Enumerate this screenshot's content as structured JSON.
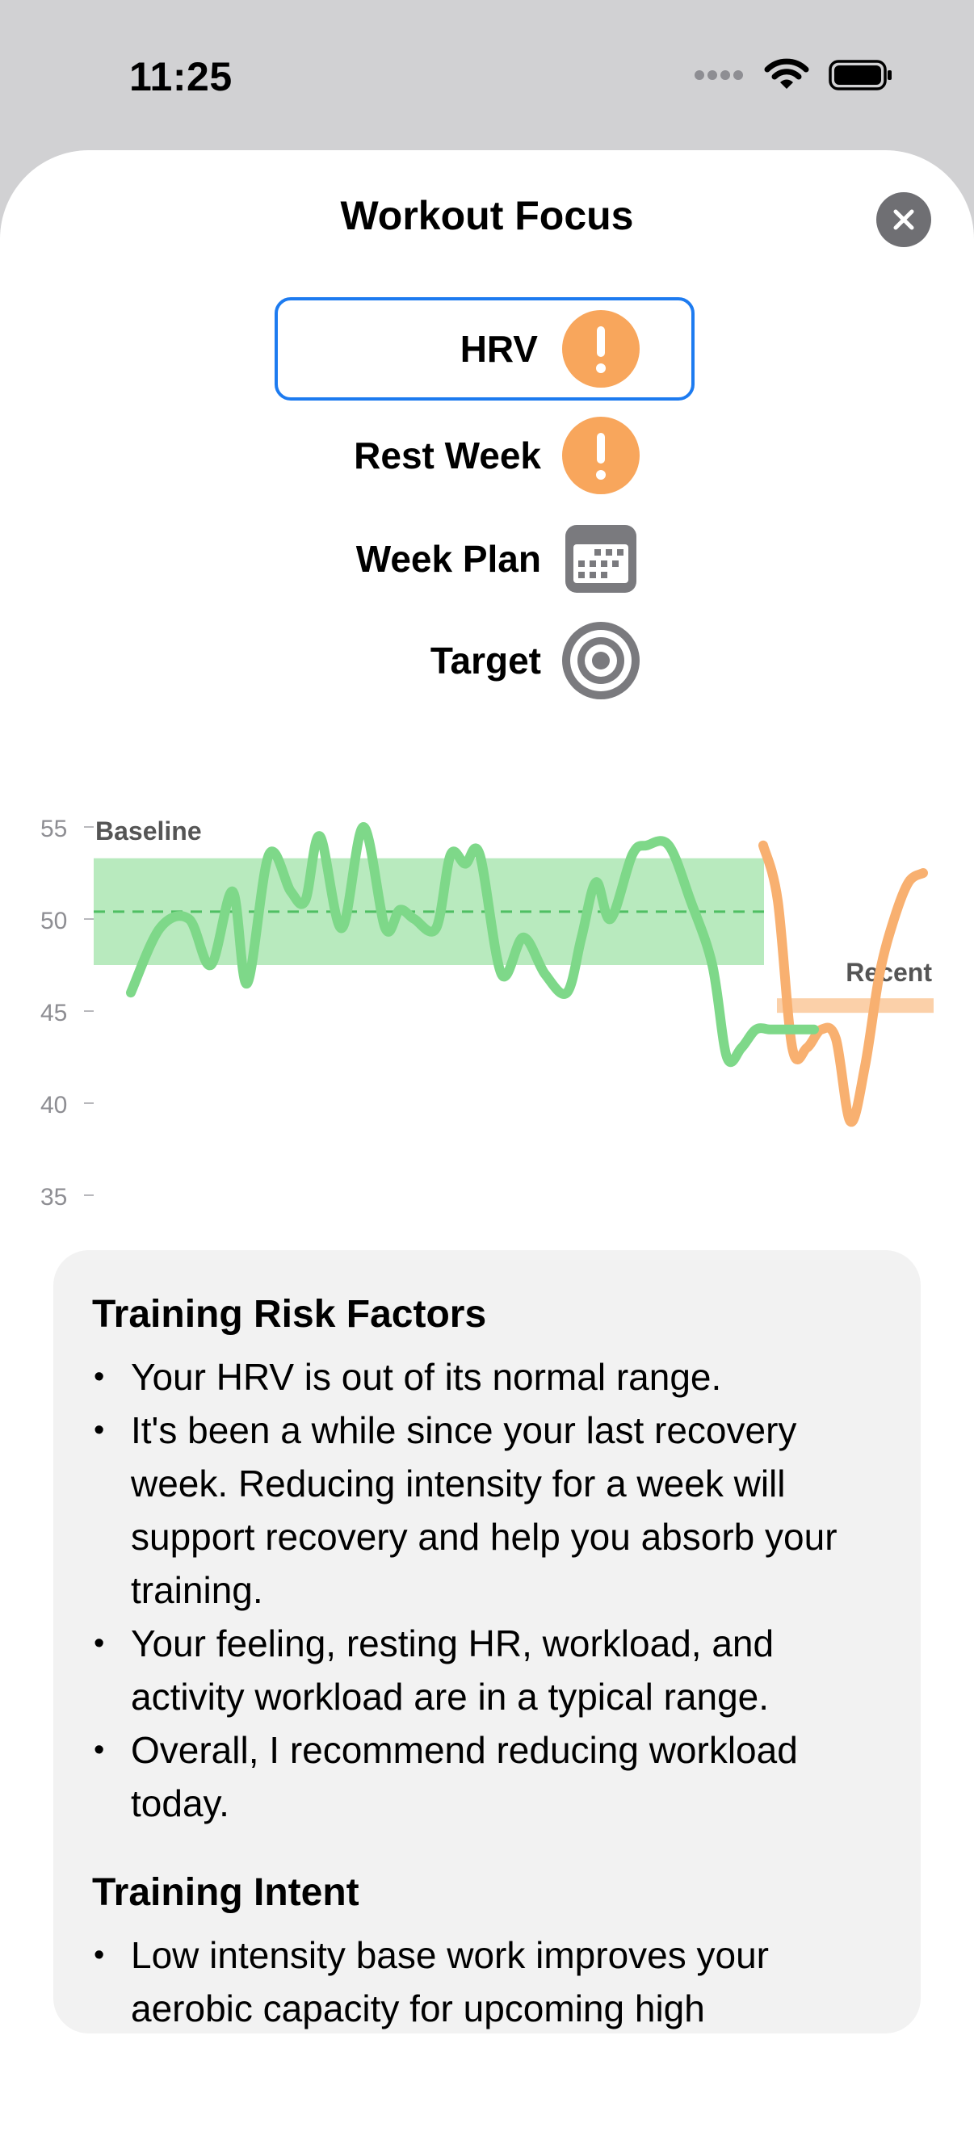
{
  "status_bar": {
    "time": "11:25"
  },
  "sheet": {
    "title": "Workout Focus"
  },
  "factors": [
    {
      "label": "HRV",
      "icon": "exclamation-icon",
      "selected": true,
      "accent": "#f8a65c"
    },
    {
      "label": "Rest Week",
      "icon": "exclamation-icon",
      "selected": false,
      "accent": "#f8a65c"
    },
    {
      "label": "Week Plan",
      "icon": "calendar-icon",
      "selected": false,
      "accent": "#7a7a7e"
    },
    {
      "label": "Target",
      "icon": "target-icon",
      "selected": false,
      "accent": "#7a7a7e"
    }
  ],
  "chart_data": {
    "type": "line",
    "title": "",
    "xlabel": "",
    "ylabel": "",
    "ylim": [
      35,
      55
    ],
    "yticks": [
      "55",
      "50",
      "45",
      "40",
      "35"
    ],
    "grid": false,
    "baseline": {
      "label": "Baseline",
      "value": 50.4,
      "band": [
        47.5,
        53.3
      ],
      "color": "#7ed889"
    },
    "recent": {
      "label": "Recent",
      "value": 45.3,
      "color": "#f8b070"
    },
    "series": [
      {
        "color": "#7ed889",
        "x": [
          0,
          4,
          8,
          11,
          14,
          16,
          19,
          22,
          24,
          26,
          29,
          32,
          35,
          37,
          39,
          42,
          44,
          46,
          48,
          51,
          54,
          57,
          60,
          62,
          64,
          66,
          69,
          71,
          74,
          77,
          80,
          82,
          84,
          86,
          88,
          90,
          92,
          94
        ],
        "values": [
          46,
          49.5,
          50,
          47.5,
          51.5,
          46.5,
          53.5,
          51.5,
          51,
          54.5,
          49.5,
          55,
          49.5,
          50.5,
          50,
          49.5,
          53.5,
          53,
          53.5,
          47,
          49,
          47,
          46,
          49,
          52,
          50,
          53.5,
          54,
          54,
          51,
          47.5,
          42.5,
          43,
          44,
          44,
          44,
          44,
          44
        ]
      },
      {
        "color": "#f8b070",
        "x": [
          87,
          89,
          91,
          93,
          95,
          97,
          99,
          101,
          103,
          105,
          107,
          109
        ],
        "values": [
          54,
          51,
          43,
          43,
          44,
          43.5,
          39,
          42,
          47,
          50,
          52,
          52.5
        ]
      }
    ]
  },
  "card": {
    "sections": [
      {
        "title": "Training Risk Factors",
        "items": [
          "Your HRV is out of its normal range.",
          "It's been a while since your last recovery week. Reducing intensity for a week will support recovery and help you absorb your training.",
          "Your feeling, resting HR, workload, and activity workload are in a typical range.",
          "Overall, I recommend reducing workload today."
        ]
      },
      {
        "title": "Training Intent",
        "items": [
          "Low intensity base work improves your aerobic capacity for upcoming high"
        ]
      }
    ]
  }
}
